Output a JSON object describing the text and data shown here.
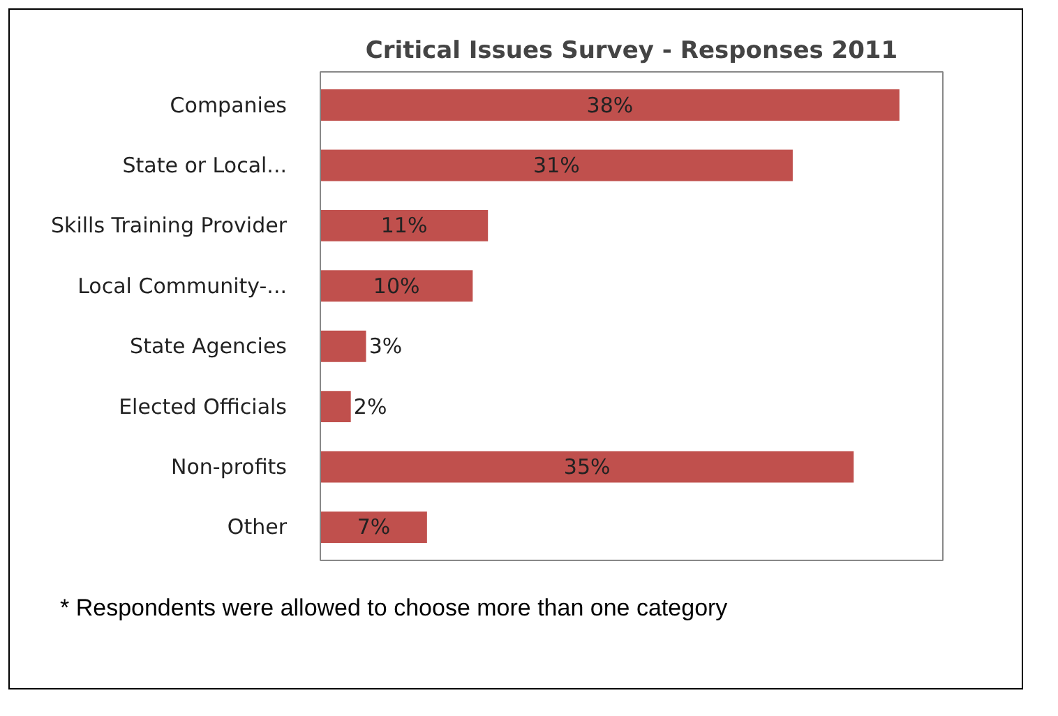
{
  "chart_data": {
    "type": "bar",
    "orientation": "horizontal",
    "title": "Critical Issues Survey - Responses 2011",
    "categories": [
      "Companies",
      "State or Local...",
      "Skills Training Provider",
      "Local Community-...",
      "State Agencies",
      "Elected Officials",
      "Non-profits",
      "Other"
    ],
    "values": [
      38,
      31,
      11,
      10,
      3,
      2,
      35,
      7
    ],
    "value_labels": [
      "38%",
      "31%",
      "11%",
      "10%",
      "3%",
      "2%",
      "35%",
      "7%"
    ],
    "color": "#c0504d",
    "grid": false,
    "annotations": [
      "* Respondents were allowed to choose more than one category"
    ]
  }
}
